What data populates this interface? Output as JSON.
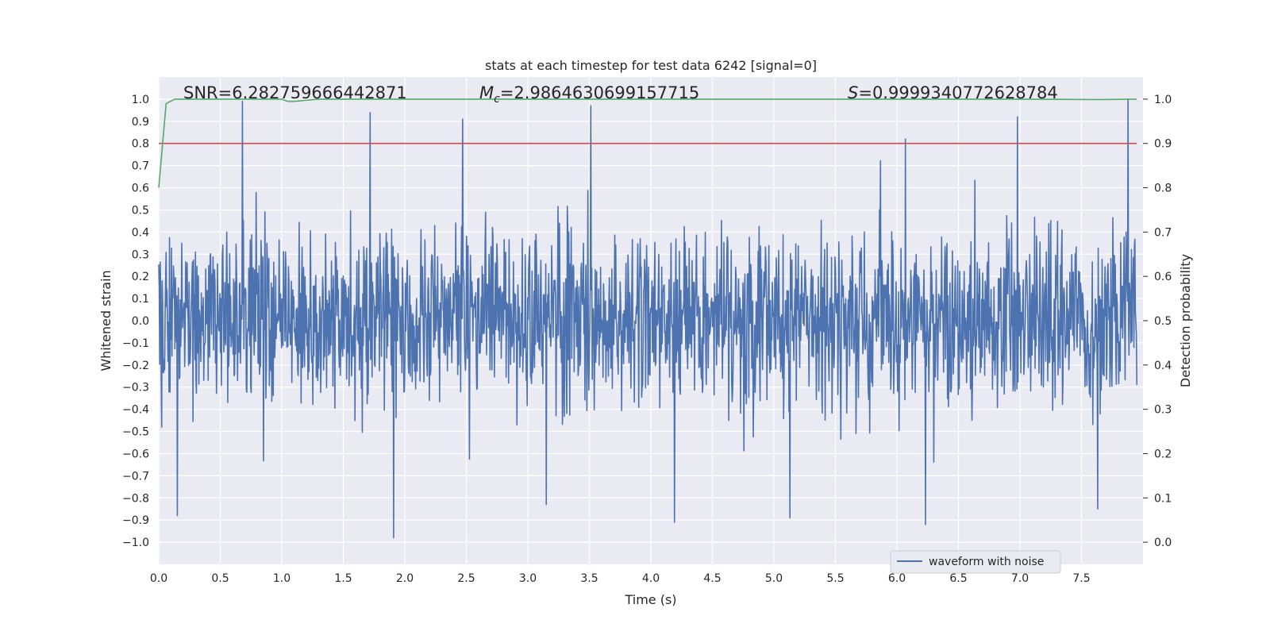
{
  "chart_data": {
    "type": "line",
    "title": "stats at each timestep for test data 6242 [signal=0]",
    "xlabel": "Time (s)",
    "ylabel": "Whitened strain",
    "y2label": "Detection probability",
    "xlim": [
      0.0,
      8.0
    ],
    "ylim": [
      -1.1,
      1.1
    ],
    "y2lim": [
      -0.05,
      1.05
    ],
    "x_ticks": [
      0.0,
      0.5,
      1.0,
      1.5,
      2.0,
      2.5,
      3.0,
      3.5,
      4.0,
      4.5,
      5.0,
      5.5,
      6.0,
      6.5,
      7.0,
      7.5
    ],
    "x_tick_labels": [
      "0.0",
      "0.5",
      "1.0",
      "1.5",
      "2.0",
      "2.5",
      "3.0",
      "3.5",
      "4.0",
      "4.5",
      "5.0",
      "5.5",
      "6.0",
      "6.5",
      "7.0",
      "7.5"
    ],
    "y_ticks": [
      1.0,
      0.9,
      0.8,
      0.7,
      0.6,
      0.5,
      0.4,
      0.3,
      0.2,
      0.1,
      0.0,
      -0.1,
      -0.2,
      -0.3,
      -0.4,
      -0.5,
      -0.6,
      -0.7,
      -0.8,
      -0.9,
      -1.0
    ],
    "y_tick_labels": [
      "1.0",
      "0.9",
      "0.8",
      "0.7",
      "0.6",
      "0.5",
      "0.4",
      "0.3",
      "0.2",
      "0.1",
      "0.0",
      "−0.1",
      "−0.2",
      "−0.3",
      "−0.4",
      "−0.5",
      "−0.6",
      "−0.7",
      "−0.8",
      "−0.9",
      "−1.0"
    ],
    "y2_ticks": [
      1.0,
      0.9,
      0.8,
      0.7,
      0.6,
      0.5,
      0.4,
      0.3,
      0.2,
      0.1,
      0.0
    ],
    "y2_tick_labels": [
      "1.0",
      "0.9",
      "0.8",
      "0.7",
      "0.6",
      "0.5",
      "0.4",
      "0.3",
      "0.2",
      "0.1",
      "0.0"
    ],
    "grid": true,
    "legend": {
      "entries": [
        "waveform with noise"
      ],
      "location": "lower-right"
    },
    "annotations": {
      "snr": "SNR=6.282759666442871",
      "mc_symbol": "M",
      "mc_sub": "c",
      "mc_value": "=2.9864630699157715",
      "s_symbol": "S",
      "s_value": "=0.9999340772628784"
    },
    "series": [
      {
        "name": "waveform with noise",
        "axis": "left",
        "color": "#4c72b0",
        "kind": "dense noise, approx. uniform amplitude",
        "envelope_peaks_upper": [
          [
            0.68,
            0.99
          ],
          [
            1.72,
            0.94
          ],
          [
            2.47,
            0.91
          ],
          [
            3.51,
            0.97
          ],
          [
            6.07,
            0.82
          ],
          [
            6.98,
            0.92
          ],
          [
            7.88,
            1.0
          ]
        ],
        "envelope_peaks_lower": [
          [
            0.15,
            -0.88
          ],
          [
            1.91,
            -0.98
          ],
          [
            3.15,
            -0.83
          ],
          [
            4.19,
            -0.91
          ],
          [
            5.13,
            -0.89
          ],
          [
            6.23,
            -0.92
          ],
          [
            7.63,
            -0.85
          ]
        ]
      },
      {
        "name": "detection probability",
        "axis": "right",
        "color": "#55a868",
        "x": [
          0.0,
          0.06,
          0.13,
          0.5,
          1.0,
          1.05,
          1.1,
          1.3,
          2.0,
          7.0,
          7.65,
          7.95
        ],
        "y": [
          0.8,
          0.99,
          1.0,
          1.0,
          1.0,
          0.995,
          0.995,
          1.0,
          1.0,
          1.0,
          0.999,
          1.0
        ]
      },
      {
        "name": "threshold",
        "axis": "right",
        "color": "#c44e52",
        "x": [
          0.0,
          7.95
        ],
        "y": [
          0.9,
          0.9
        ]
      }
    ]
  }
}
